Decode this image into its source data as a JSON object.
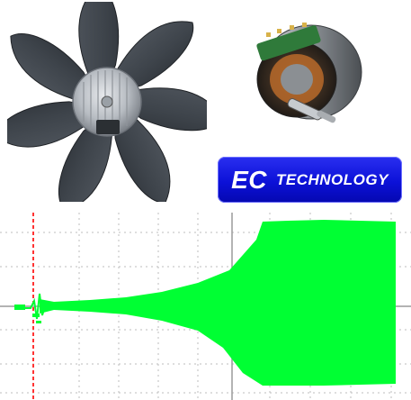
{
  "badge": {
    "ec": "EC",
    "technology": "TECHNOLOGY",
    "background": "#1014e0",
    "text_color": "#ffffff"
  },
  "images": {
    "fan": "axial-fan-photo",
    "motor": "ec-motor-cutaway-photo",
    "scope": "oscilloscope-waveform"
  },
  "scope": {
    "trace_color": "#00ff33",
    "trigger_color": "#ff3333",
    "grid_color": "#bdbdbd",
    "background": "#ffffff"
  }
}
